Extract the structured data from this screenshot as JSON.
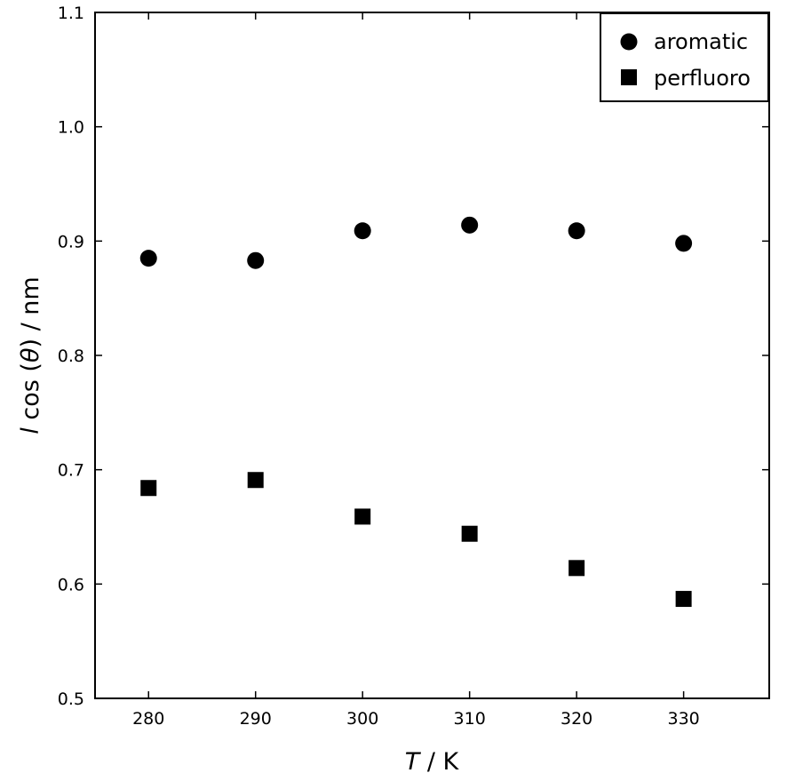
{
  "chart_data": {
    "type": "scatter",
    "x_ticks": [
      280,
      290,
      300,
      310,
      320,
      330
    ],
    "y_ticks": [
      0.5,
      0.6,
      0.7,
      0.8,
      0.9,
      1.0,
      1.1
    ],
    "y_tick_labels": [
      "0.5",
      "0.6",
      "0.7",
      "0.8",
      "0.9",
      "1.0",
      "1.1"
    ],
    "xlim": [
      275,
      338
    ],
    "ylim": [
      0.5,
      1.1
    ],
    "xlabel": {
      "var": "T",
      "unit": " / K"
    },
    "ylabel": {
      "var": "l",
      "func": " cos (",
      "theta": "θ",
      "rest": ") / nm"
    },
    "grid": false,
    "legend_position": "top-right",
    "series": [
      {
        "name": "aromatic",
        "marker": "circle",
        "color": "#000000",
        "x": [
          280,
          290,
          300,
          310,
          320,
          330
        ],
        "y": [
          0.885,
          0.883,
          0.909,
          0.914,
          0.909,
          0.898
        ]
      },
      {
        "name": "perfluoro",
        "marker": "square",
        "color": "#000000",
        "x": [
          280,
          290,
          300,
          310,
          320,
          330
        ],
        "y": [
          0.684,
          0.691,
          0.659,
          0.644,
          0.614,
          0.587
        ]
      }
    ]
  }
}
